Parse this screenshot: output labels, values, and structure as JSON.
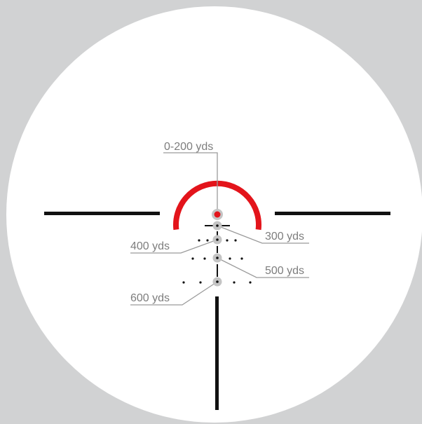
{
  "colors": {
    "background": "#d1d2d3",
    "lens": "#ffffff",
    "reticle": "#111111",
    "red_ring": "#e3141b",
    "red_dot": "#e3141b",
    "aim_point": "#c4c4c4",
    "leader": "#9a9a9a",
    "label_text": "#7d7d7d"
  },
  "labels": {
    "range_0_200": "0-200 yds",
    "range_300": "300 yds",
    "range_400": "400 yds",
    "range_500": "500 yds",
    "range_600": "600 yds"
  }
}
